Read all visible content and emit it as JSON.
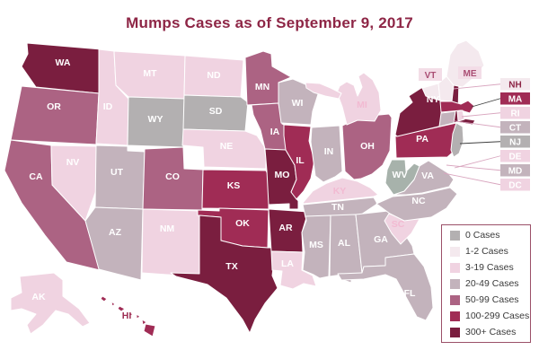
{
  "title": {
    "text": "Mumps Cases as of September 9, 2017",
    "color": "#8e2646"
  },
  "legend": {
    "items": [
      {
        "key": "0",
        "label": "0 Cases",
        "color": "#b3b0b1"
      },
      {
        "key": "1-2",
        "label": "1-2 Cases",
        "color": "#f4e9ee"
      },
      {
        "key": "3-19",
        "label": "3-19 Cases",
        "color": "#f0d3e1"
      },
      {
        "key": "20-49",
        "label": "20-49 Cases",
        "color": "#c3b3bc"
      },
      {
        "key": "50-99",
        "label": "50-99 Cases",
        "color": "#ac6383"
      },
      {
        "key": "100-299",
        "label": "100-299 Cases",
        "color": "#a02c55"
      },
      {
        "key": "300+",
        "label": "300+ Cases",
        "color": "#7a1e3f"
      }
    ]
  },
  "map": {
    "label_color_default": "#ffffff",
    "states": [
      {
        "abbr": "WA",
        "cases": "300+"
      },
      {
        "abbr": "OR",
        "cases": "50-99"
      },
      {
        "abbr": "CA",
        "cases": "50-99"
      },
      {
        "abbr": "NV",
        "cases": "3-19"
      },
      {
        "abbr": "ID",
        "cases": "3-19"
      },
      {
        "abbr": "MT",
        "cases": "3-19"
      },
      {
        "abbr": "WY",
        "cases": "0"
      },
      {
        "abbr": "UT",
        "cases": "20-49"
      },
      {
        "abbr": "CO",
        "cases": "50-99"
      },
      {
        "abbr": "AZ",
        "cases": "20-49"
      },
      {
        "abbr": "NM",
        "cases": "3-19"
      },
      {
        "abbr": "ND",
        "cases": "3-19"
      },
      {
        "abbr": "SD",
        "cases": "0"
      },
      {
        "abbr": "NE",
        "cases": "3-19"
      },
      {
        "abbr": "KS",
        "cases": "100-299"
      },
      {
        "abbr": "OK",
        "cases": "100-299"
      },
      {
        "abbr": "TX",
        "cases": "300+"
      },
      {
        "abbr": "MN",
        "cases": "50-99"
      },
      {
        "abbr": "IA",
        "cases": "50-99"
      },
      {
        "abbr": "MO",
        "cases": "300+"
      },
      {
        "abbr": "AR",
        "cases": "300+"
      },
      {
        "abbr": "LA",
        "cases": "3-19"
      },
      {
        "abbr": "WI",
        "cases": "20-49"
      },
      {
        "abbr": "IL",
        "cases": "100-299"
      },
      {
        "abbr": "IN",
        "cases": "20-49"
      },
      {
        "abbr": "OH",
        "cases": "50-99"
      },
      {
        "abbr": "MI",
        "cases": "3-19",
        "label_color": "#f2bad2"
      },
      {
        "abbr": "KY",
        "cases": "3-19",
        "label_color": "#f2bad2"
      },
      {
        "abbr": "TN",
        "cases": "20-49"
      },
      {
        "abbr": "MS",
        "cases": "20-49"
      },
      {
        "abbr": "AL",
        "cases": "20-49"
      },
      {
        "abbr": "GA",
        "cases": "20-49"
      },
      {
        "abbr": "FL",
        "cases": "20-49"
      },
      {
        "abbr": "SC",
        "cases": "3-19",
        "label_color": "#f2bad2"
      },
      {
        "abbr": "NC",
        "cases": "20-49"
      },
      {
        "abbr": "VA",
        "cases": "20-49"
      },
      {
        "abbr": "WV",
        "cases": "0",
        "color_override": "#a7b2ab"
      },
      {
        "abbr": "PA",
        "cases": "100-299"
      },
      {
        "abbr": "NY",
        "cases": "300+"
      },
      {
        "abbr": "VT",
        "cases": "1-2",
        "no_map_label": true
      },
      {
        "abbr": "NH",
        "cases": "1-2",
        "no_map_label": true
      },
      {
        "abbr": "ME",
        "cases": "1-2",
        "no_map_label": true
      },
      {
        "abbr": "MA",
        "cases": "100-299",
        "no_map_label": true
      },
      {
        "abbr": "CT",
        "cases": "20-49",
        "no_map_label": true
      },
      {
        "abbr": "RI",
        "cases": "3-19",
        "no_map_label": true
      },
      {
        "abbr": "NJ",
        "cases": "0",
        "no_map_label": true
      },
      {
        "abbr": "AK",
        "cases": "3-19"
      },
      {
        "abbr": "HI",
        "cases": "100-299",
        "label_color": "#9e2d53"
      }
    ]
  },
  "callouts": [
    {
      "abbr": "NH",
      "cases": "1-2",
      "text_color": "#8c2344"
    },
    {
      "abbr": "MA",
      "cases": "100-299",
      "text_color": "#ffffff"
    },
    {
      "abbr": "RI",
      "cases": "3-19",
      "text_color": "#ffffff"
    },
    {
      "abbr": "CT",
      "cases": "20-49",
      "text_color": "#ffffff"
    },
    {
      "abbr": "NJ",
      "cases": "0",
      "text_color": "#ffffff"
    },
    {
      "abbr": "DE",
      "cases": "3-19",
      "text_color": "#ffffff"
    },
    {
      "abbr": "MD",
      "cases": "20-49",
      "text_color": "#ffffff"
    },
    {
      "abbr": "DC",
      "cases": "3-19",
      "text_color": "#ffffff"
    }
  ],
  "inset_labels": [
    {
      "abbr": "VT",
      "box_color": "#f3dde7",
      "text_color": "#aa4e74"
    },
    {
      "abbr": "ME",
      "box_color": "#f3dde7",
      "text_color": "#aa4e74"
    }
  ]
}
